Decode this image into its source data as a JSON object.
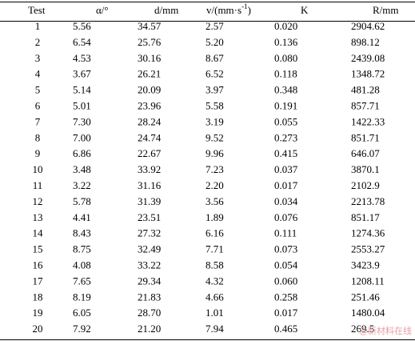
{
  "table": {
    "headers": [
      "Test",
      "α/°",
      "d/mm",
      {
        "text": "v/(mm·s",
        "sup": "-1",
        "tail": ")"
      },
      "K",
      "R/mm"
    ],
    "rows": [
      [
        "1",
        "5.56",
        "34.57",
        "2.57",
        "0.020",
        "2904.62"
      ],
      [
        "2",
        "6.54",
        "25.76",
        "5.20",
        "0.136",
        "898.12"
      ],
      [
        "3",
        "4.53",
        "30.16",
        "8.67",
        "0.080",
        "2439.08"
      ],
      [
        "4",
        "3.67",
        "26.21",
        "6.52",
        "0.118",
        "1348.72"
      ],
      [
        "5",
        "5.14",
        "20.09",
        "3.97",
        "0.348",
        "481.28"
      ],
      [
        "6",
        "5.01",
        "23.96",
        "5.58",
        "0.191",
        "857.71"
      ],
      [
        "7",
        "7.30",
        "28.24",
        "3.19",
        "0.055",
        "1422.33"
      ],
      [
        "8",
        "7.00",
        "24.74",
        "9.52",
        "0.273",
        "851.71"
      ],
      [
        "9",
        "6.86",
        "22.67",
        "9.96",
        "0.415",
        "646.07"
      ],
      [
        "10",
        "3.48",
        "33.92",
        "7.23",
        "0.037",
        "3870.1"
      ],
      [
        "11",
        "3.22",
        "31.16",
        "2.20",
        "0.017",
        "2102.9"
      ],
      [
        "12",
        "5.78",
        "31.39",
        "3.56",
        "0.034",
        "2213.78"
      ],
      [
        "13",
        "4.41",
        "23.51",
        "1.89",
        "0.076",
        "851.17"
      ],
      [
        "14",
        "8.43",
        "27.32",
        "6.16",
        "0.111",
        "1274.36"
      ],
      [
        "15",
        "8.75",
        "32.49",
        "7.71",
        "0.073",
        "2553.27"
      ],
      [
        "16",
        "4.08",
        "33.22",
        "8.58",
        "0.054",
        "3423.9"
      ],
      [
        "17",
        "7.65",
        "29.34",
        "4.32",
        "0.060",
        "1208.11"
      ],
      [
        "18",
        "8.19",
        "21.83",
        "4.66",
        "0.258",
        "251.46"
      ],
      [
        "19",
        "6.05",
        "28.70",
        "1.01",
        "0.017",
        "1480.04"
      ],
      [
        "20",
        "7.92",
        "21.20",
        "7.94",
        "0.465",
        "269.5"
      ]
    ]
  },
  "watermark": "@新材料在线"
}
